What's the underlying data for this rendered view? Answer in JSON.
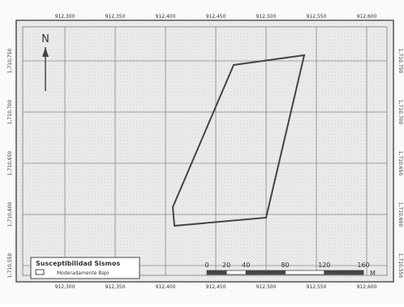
{
  "north_arrow": {
    "label": "N"
  },
  "grid": {
    "top_labels": [
      "912,300",
      "912,350",
      "912,400",
      "912,450",
      "912,500",
      "912,550",
      "912,600"
    ],
    "bottom_labels": [
      "912,300",
      "912,350",
      "912,400",
      "912,450",
      "912,500",
      "912,550",
      "912,600"
    ],
    "left_labels": [
      "1,710,750",
      "1,710,700",
      "1,710,650",
      "1,710,600",
      "1,710,550"
    ],
    "right_labels": [
      "1,710,750",
      "1,710,700",
      "1,710,650",
      "1,710,600",
      "1,710,550"
    ]
  },
  "legend": {
    "title": "Susceptibilidad Sismos",
    "item": "Moderadamente Bajo"
  },
  "scale_bar": {
    "ticks": [
      0,
      20,
      40,
      80,
      120,
      160
    ],
    "unit": "M"
  }
}
